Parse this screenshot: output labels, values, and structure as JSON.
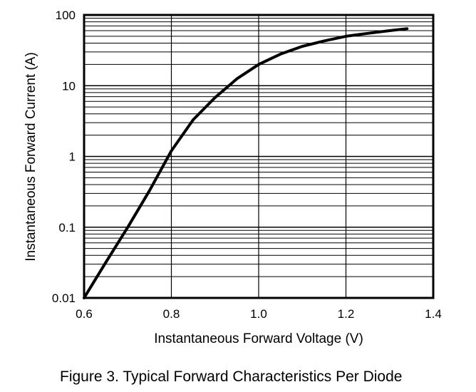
{
  "chart_data": {
    "type": "line",
    "title": "Figure 3. Typical Forward Characteristics Per Diode",
    "xlabel": "Instantaneous Forward Voltage (V)",
    "ylabel": "Instantaneous Forward Current (A)",
    "xlim": [
      0.6,
      1.4
    ],
    "ylim": [
      0.01,
      100
    ],
    "yscale": "log",
    "grid": true,
    "x_ticks": [
      0.6,
      0.8,
      1.0,
      1.2,
      1.4
    ],
    "x_tick_labels": [
      "0.6",
      "0.8",
      "1.0",
      "1.2",
      "1.4"
    ],
    "y_ticks": [
      0.01,
      0.1,
      1,
      10,
      100
    ],
    "y_tick_labels": [
      "0.01",
      "0.1",
      "1",
      "10",
      "100"
    ],
    "series": [
      {
        "x": [
          0.6,
          0.65,
          0.7,
          0.75,
          0.8,
          0.85,
          0.9,
          0.95,
          1.0,
          1.05,
          1.1,
          1.15,
          1.2,
          1.25,
          1.3,
          1.34
        ],
        "y": [
          0.01,
          0.032,
          0.1,
          0.33,
          1.2,
          3.3,
          6.8,
          12.5,
          20,
          28,
          36,
          43,
          50,
          55,
          60,
          64
        ],
        "color": "#000000"
      }
    ]
  }
}
